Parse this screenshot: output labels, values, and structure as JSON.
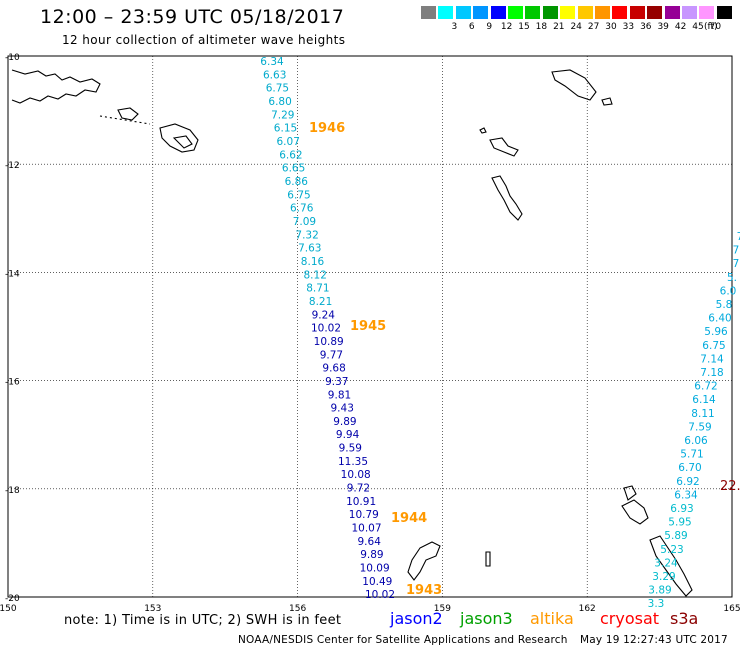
{
  "header": {
    "title": "12:00 – 23:59 UTC 05/18/2017",
    "subtitle": "12 hour collection of altimeter wave heights"
  },
  "legend": {
    "unit": "(ft)",
    "items": [
      {
        "label": "",
        "color": "#7f7f7f"
      },
      {
        "label": "3",
        "color": "#00ffff"
      },
      {
        "label": "6",
        "color": "#00c8ff"
      },
      {
        "label": "9",
        "color": "#0096ff"
      },
      {
        "label": "12",
        "color": "#0000ff"
      },
      {
        "label": "15",
        "color": "#00ff00"
      },
      {
        "label": "18",
        "color": "#00c800"
      },
      {
        "label": "21",
        "color": "#009600"
      },
      {
        "label": "24",
        "color": "#ffff00"
      },
      {
        "label": "27",
        "color": "#ffc800"
      },
      {
        "label": "30",
        "color": "#ff9600"
      },
      {
        "label": "33",
        "color": "#ff0000"
      },
      {
        "label": "36",
        "color": "#c80000"
      },
      {
        "label": "39",
        "color": "#960000"
      },
      {
        "label": "42",
        "color": "#960096"
      },
      {
        "label": "45",
        "color": "#c896ff"
      },
      {
        "label": "70",
        "color": "#ff96ff"
      },
      {
        "label": "",
        "color": "#000000"
      }
    ]
  },
  "map": {
    "lon_range": [
      150,
      165
    ],
    "lat_range": [
      -20,
      -10
    ],
    "lon_labels": [
      "150",
      "153",
      "156",
      "159",
      "162",
      "165"
    ],
    "lat_labels": [
      "-10",
      "-12",
      "-14",
      "-16",
      "-18",
      "-20"
    ],
    "track_colors": {
      "light": "#00aacc",
      "dark": "#0000aa",
      "time": "#ff9900",
      "cryosat": "#8b0000"
    },
    "track_a": [
      {
        "v": "6.34",
        "c": "light"
      },
      {
        "v": "6.63",
        "c": "light"
      },
      {
        "v": "6.75",
        "c": "light"
      },
      {
        "v": "6.80",
        "c": "light"
      },
      {
        "v": "7.29",
        "c": "light"
      },
      {
        "v": "6.15",
        "c": "light"
      },
      {
        "v": "6.07",
        "c": "light"
      },
      {
        "v": "6.62",
        "c": "light"
      },
      {
        "v": "6.65",
        "c": "light"
      },
      {
        "v": "6.86",
        "c": "light"
      },
      {
        "v": "6.75",
        "c": "light"
      },
      {
        "v": "6.76",
        "c": "light"
      },
      {
        "v": "7.09",
        "c": "light"
      },
      {
        "v": "7.32",
        "c": "light"
      },
      {
        "v": "7.63",
        "c": "light"
      },
      {
        "v": "8.16",
        "c": "light"
      },
      {
        "v": "8.12",
        "c": "light"
      },
      {
        "v": "8.71",
        "c": "light"
      },
      {
        "v": "8.21",
        "c": "light"
      },
      {
        "v": "9.24",
        "c": "dark"
      },
      {
        "v": "10.02",
        "c": "dark"
      },
      {
        "v": "10.89",
        "c": "dark"
      },
      {
        "v": "9.77",
        "c": "dark"
      },
      {
        "v": "9.68",
        "c": "dark"
      },
      {
        "v": "9.37",
        "c": "dark"
      },
      {
        "v": "9.81",
        "c": "dark"
      },
      {
        "v": "9.43",
        "c": "dark"
      },
      {
        "v": "9.89",
        "c": "dark"
      },
      {
        "v": "9.94",
        "c": "dark"
      },
      {
        "v": "9.59",
        "c": "dark"
      },
      {
        "v": "11.35",
        "c": "dark"
      },
      {
        "v": "10.08",
        "c": "dark"
      },
      {
        "v": "9.72",
        "c": "dark"
      },
      {
        "v": "10.91",
        "c": "dark"
      },
      {
        "v": "10.79",
        "c": "dark"
      },
      {
        "v": "10.07",
        "c": "dark"
      },
      {
        "v": "9.64",
        "c": "dark"
      },
      {
        "v": "9.89",
        "c": "dark"
      },
      {
        "v": "10.09",
        "c": "dark"
      },
      {
        "v": "10.49",
        "c": "dark"
      },
      {
        "v": "10.02",
        "c": "dark"
      }
    ],
    "track_a_times": [
      "1946",
      "1945",
      "1944",
      "1943"
    ],
    "track_b": [
      "7",
      "7",
      "7",
      "5.",
      "6.0",
      "5.8",
      "6.40",
      "5.96",
      "6.75",
      "7.14",
      "7.18",
      "6.72",
      "6.14",
      "8.11",
      "7.59",
      "6.06",
      "5.71",
      "6.70",
      "6.92",
      "6.34",
      "6.93",
      "5.95",
      "5.89",
      "5.23",
      "3.24",
      "3.29",
      "3.89",
      "3.3"
    ],
    "cryosat_label": "22."
  },
  "footer": {
    "note": "note:  1) Time is in UTC;  2) SWH is in feet",
    "satellites": [
      {
        "name": "jason2",
        "color": "#0000ff"
      },
      {
        "name": "jason3",
        "color": "#00a000"
      },
      {
        "name": "altika",
        "color": "#ff9900"
      },
      {
        "name": "cryosat",
        "color": "#ff0000"
      },
      {
        "name": "s3a",
        "color": "#8b0000"
      }
    ],
    "credit": "NOAA/NESDIS Center for Satellite Applications and Research",
    "timestamp": "May 19 12:27:43 UTC 2017"
  }
}
